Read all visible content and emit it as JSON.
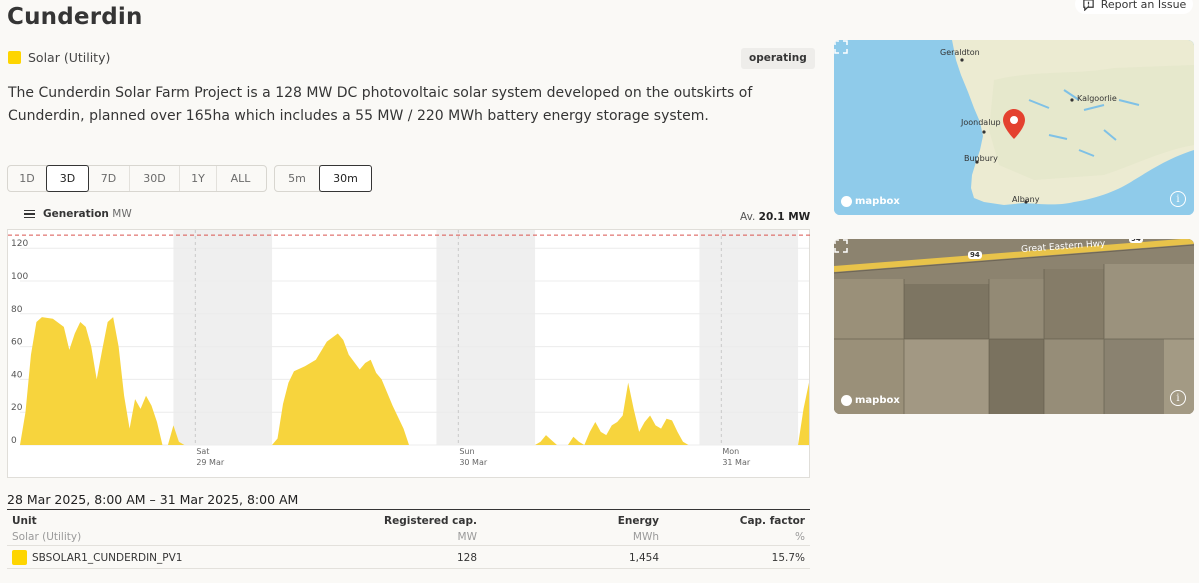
{
  "facility": {
    "name": "Cunderdin",
    "technology": "Solar (Utility)",
    "status": "operating",
    "description": "The Cunderdin Solar Farm Project is a 128 MW DC photovoltaic solar system developed on the outskirts of Cunderdin, planned over 165ha which includes a 55 MW / 220 MWh battery energy storage system.",
    "tech_color": "#fed500"
  },
  "header": {
    "report_label": "Report an Issue"
  },
  "range_buttons": [
    {
      "label": "1D",
      "active": false
    },
    {
      "label": "3D",
      "active": true
    },
    {
      "label": "7D",
      "active": false
    },
    {
      "label": "30D",
      "active": false
    },
    {
      "label": "1Y",
      "active": false
    },
    {
      "label": "ALL",
      "active": false
    }
  ],
  "interval_buttons": [
    {
      "label": "5m",
      "active": false
    },
    {
      "label": "30m",
      "active": true
    }
  ],
  "chart": {
    "title": "Generation",
    "unit": "MW",
    "avg_label": "Av.",
    "avg_value": "20.1 MW"
  },
  "chart_data": {
    "type": "area",
    "series": [
      {
        "name": "Generation",
        "color": "#f7d43d"
      }
    ],
    "ylim": [
      0,
      125
    ],
    "yticks": [
      0,
      20,
      40,
      60,
      80,
      100,
      120
    ],
    "capacity_line": 128,
    "x_hours_start": 0,
    "x_hours_end": 72,
    "x_start_label": "28 Mar 2025, 8:00 AM",
    "xticks": [
      {
        "hour": 16,
        "day": "Sat",
        "date": "29 Mar"
      },
      {
        "hour": 40,
        "day": "Sun",
        "date": "30 Mar"
      },
      {
        "hour": 64,
        "day": "Mon",
        "date": "31 Mar"
      }
    ],
    "night_bands": [
      [
        14,
        23
      ],
      [
        38,
        47
      ],
      [
        62,
        71
      ]
    ],
    "points": [
      [
        0,
        0
      ],
      [
        0.5,
        20
      ],
      [
        1,
        55
      ],
      [
        1.5,
        75
      ],
      [
        2,
        78
      ],
      [
        3,
        77
      ],
      [
        4,
        72
      ],
      [
        4.5,
        58
      ],
      [
        5,
        68
      ],
      [
        5.5,
        75
      ],
      [
        6,
        72
      ],
      [
        6.5,
        60
      ],
      [
        7,
        40
      ],
      [
        7.5,
        58
      ],
      [
        8,
        75
      ],
      [
        8.5,
        78
      ],
      [
        9,
        60
      ],
      [
        9.5,
        30
      ],
      [
        10,
        10
      ],
      [
        10.5,
        28
      ],
      [
        11,
        22
      ],
      [
        11.5,
        30
      ],
      [
        12,
        24
      ],
      [
        12.5,
        14
      ],
      [
        13,
        0
      ],
      [
        13.5,
        0
      ],
      [
        14,
        12
      ],
      [
        14.5,
        2
      ],
      [
        15,
        0
      ],
      [
        23,
        0
      ],
      [
        23.5,
        4
      ],
      [
        24,
        25
      ],
      [
        24.5,
        38
      ],
      [
        25,
        45
      ],
      [
        26,
        48
      ],
      [
        27,
        52
      ],
      [
        28,
        63
      ],
      [
        29,
        68
      ],
      [
        29.5,
        64
      ],
      [
        30,
        55
      ],
      [
        31,
        46
      ],
      [
        31.5,
        50
      ],
      [
        32,
        52
      ],
      [
        32.5,
        44
      ],
      [
        33,
        40
      ],
      [
        34,
        24
      ],
      [
        35,
        10
      ],
      [
        35.5,
        0
      ],
      [
        47,
        0
      ],
      [
        47.5,
        2
      ],
      [
        48,
        6
      ],
      [
        48.5,
        3
      ],
      [
        49,
        0
      ],
      [
        50,
        0
      ],
      [
        50.5,
        5
      ],
      [
        51,
        2
      ],
      [
        51.5,
        0
      ],
      [
        52,
        8
      ],
      [
        52.5,
        14
      ],
      [
        53,
        8
      ],
      [
        53.5,
        6
      ],
      [
        54,
        12
      ],
      [
        54.5,
        14
      ],
      [
        55,
        18
      ],
      [
        55.5,
        38
      ],
      [
        56,
        22
      ],
      [
        56.5,
        8
      ],
      [
        57,
        14
      ],
      [
        57.5,
        18
      ],
      [
        58,
        12
      ],
      [
        58.5,
        10
      ],
      [
        59,
        16
      ],
      [
        59.5,
        15
      ],
      [
        60,
        8
      ],
      [
        60.5,
        2
      ],
      [
        61,
        0
      ],
      [
        71,
        0
      ],
      [
        71.5,
        22
      ],
      [
        72,
        38
      ]
    ]
  },
  "date_range": "28 Mar 2025, 8:00 AM – 31 Mar 2025, 8:00 AM",
  "table": {
    "columns": [
      {
        "label": "Unit",
        "sub": "Solar (Utility)"
      },
      {
        "label": "Registered cap.",
        "sub": "MW"
      },
      {
        "label": "Energy",
        "sub": "MWh"
      },
      {
        "label": "Cap. factor",
        "sub": "%"
      }
    ],
    "rows": [
      {
        "unit": "SBSOLAR1_CUNDERDIN_PV1",
        "cap": "128",
        "energy": "1,454",
        "factor": "15.7%"
      }
    ]
  },
  "map": {
    "labels": [
      "Geraldton",
      "Kalgoorlie",
      "Joondalup",
      "Bunbury",
      "Albany"
    ],
    "attribution": "mapbox",
    "marker_color": "#e4412f"
  },
  "satellite": {
    "road_label": "Great Eastern Hwy",
    "shield_1": "94",
    "shield_2": "94",
    "attribution": "mapbox"
  }
}
